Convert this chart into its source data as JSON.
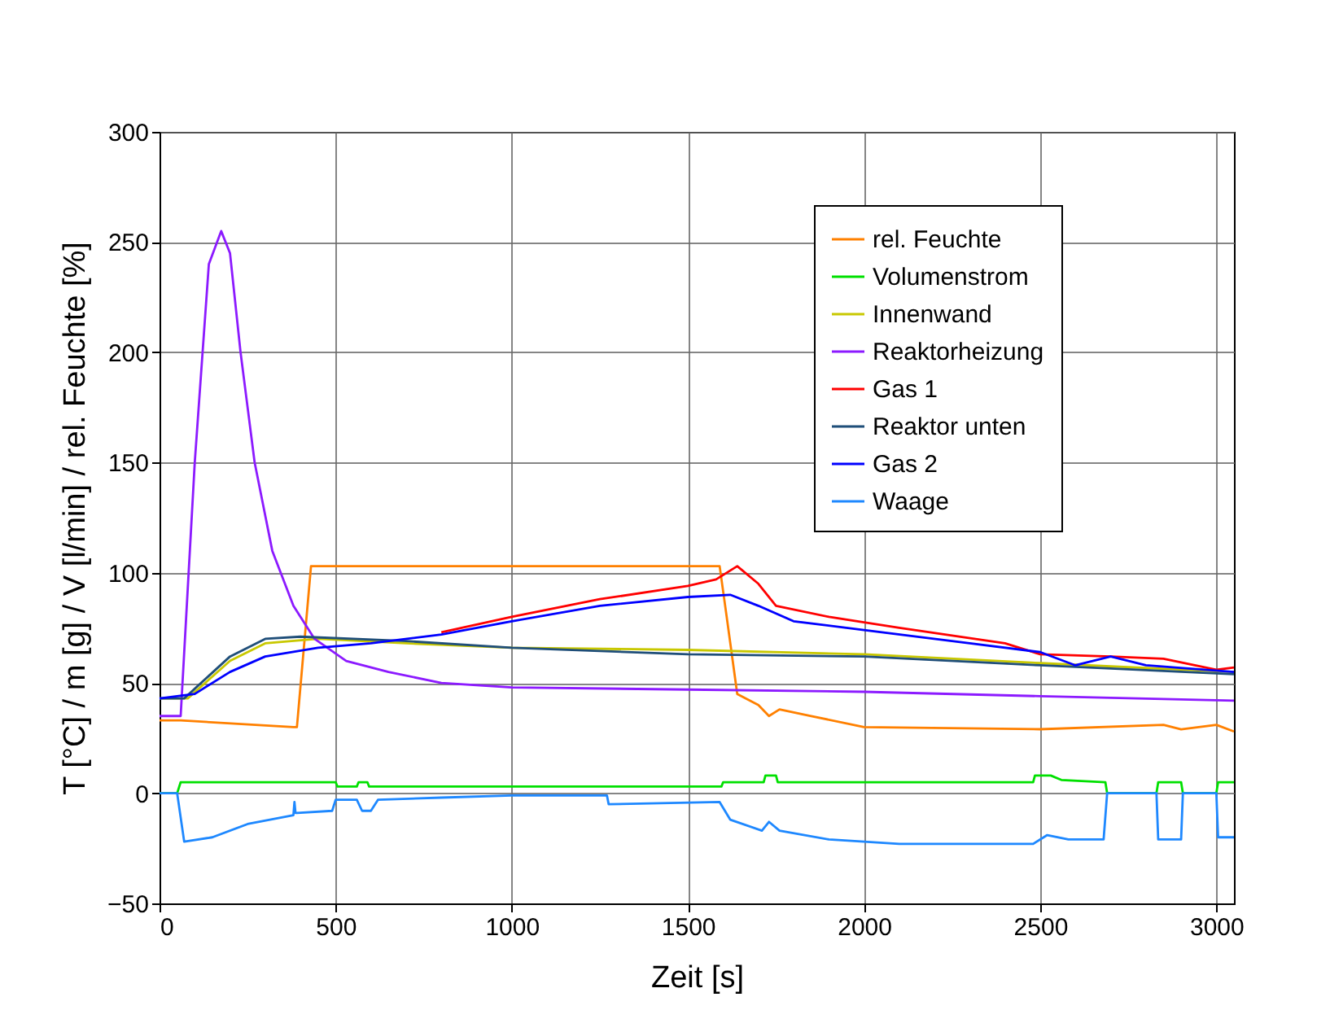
{
  "chart_data": {
    "type": "line",
    "xlabel": "Zeit [s]",
    "ylabel": "T [°C] / m [g] / V [l/min] / rel. Feuchte [%]",
    "xlim": [
      0,
      3050
    ],
    "xticks": [
      0,
      500,
      {
        "value": 1000,
        "label": "1000"
      },
      {
        "value": 1500,
        "label": "1500"
      },
      {
        "value": 2000,
        "label": "2000"
      },
      {
        "value": 2500,
        "label": "2500"
      },
      {
        "value": 3000,
        "label": "3000"
      }
    ],
    "ylim": [
      -50,
      300
    ],
    "yticks": [
      -50,
      0,
      50,
      100,
      150,
      200,
      250,
      300
    ],
    "grid": true,
    "legend": "top right",
    "series": [
      {
        "name": "rel. Feuchte",
        "color": "#ff8000",
        "x": [
          0,
          60,
          380,
          390,
          430,
          1590,
          1610,
          1640,
          1700,
          1730,
          1760,
          1850,
          2000,
          2500,
          2850,
          2900,
          3000,
          3050
        ],
        "values": [
          33,
          33,
          30,
          30,
          103,
          103,
          80,
          45,
          40,
          35,
          38,
          35,
          30,
          29,
          31,
          29,
          31,
          28
        ]
      },
      {
        "name": "Volumenstrom",
        "color": "#00e000",
        "x": [
          0,
          50,
          60,
          500,
          505,
          560,
          565,
          590,
          595,
          1595,
          1600,
          1715,
          1720,
          1750,
          1755,
          2480,
          2485,
          2530,
          2560,
          2685,
          2690,
          2830,
          2835,
          2900,
          2905,
          3000,
          3005,
          3050
        ],
        "values": [
          0,
          0,
          5,
          5,
          3,
          3,
          5,
          5,
          3,
          3,
          5,
          5,
          8,
          8,
          5,
          5,
          8,
          8,
          6,
          5,
          0,
          0,
          5,
          5,
          0,
          0,
          5,
          5
        ]
      },
      {
        "name": "Innenwand",
        "color": "#c8c800",
        "x": [
          0,
          80,
          200,
          300,
          450,
          700,
          1000,
          1500,
          2000,
          2500,
          3050
        ],
        "values": [
          43,
          43,
          60,
          68,
          70,
          68,
          66,
          65,
          63,
          59,
          55
        ]
      },
      {
        "name": "Reaktorheizung",
        "color": "#8c1aff",
        "x": [
          0,
          60,
          100,
          140,
          175,
          200,
          230,
          270,
          320,
          380,
          440,
          530,
          650,
          800,
          1000,
          1500,
          2000,
          2500,
          3050
        ],
        "values": [
          35,
          35,
          150,
          240,
          255,
          245,
          200,
          150,
          110,
          85,
          70,
          60,
          55,
          50,
          48,
          47,
          46,
          44,
          42
        ]
      },
      {
        "name": "Gas 1",
        "color": "#ff0000",
        "x": [
          800,
          1000,
          1250,
          1500,
          1580,
          1640,
          1700,
          1750,
          1900,
          2100,
          2400,
          2500,
          2700,
          2850,
          3000,
          3050
        ],
        "values": [
          73,
          80,
          88,
          94,
          97,
          103,
          95,
          85,
          80,
          75,
          68,
          63,
          62,
          61,
          56,
          57
        ]
      },
      {
        "name": "Reaktor unten",
        "color": "#1f4e79",
        "x": [
          0,
          70,
          200,
          300,
          400,
          700,
          1000,
          1500,
          2000,
          2500,
          3050
        ],
        "values": [
          43,
          43,
          62,
          70,
          71,
          69,
          66,
          63,
          62,
          58,
          54
        ]
      },
      {
        "name": "Gas 2",
        "color": "#0000ff",
        "x": [
          0,
          100,
          200,
          300,
          450,
          600,
          800,
          1000,
          1250,
          1500,
          1620,
          1700,
          1800,
          2000,
          2300,
          2500,
          2600,
          2700,
          2800,
          3050
        ],
        "values": [
          43,
          45,
          55,
          62,
          66,
          68,
          72,
          78,
          85,
          89,
          90,
          85,
          78,
          74,
          68,
          64,
          58,
          62,
          58,
          55
        ]
      },
      {
        "name": "Waage",
        "color": "#1e88ff",
        "x": [
          0,
          50,
          70,
          150,
          250,
          380,
          383,
          386,
          390,
          490,
          500,
          560,
          575,
          600,
          620,
          800,
          1000,
          1270,
          1275,
          1590,
          1620,
          1710,
          1730,
          1760,
          1900,
          2100,
          2480,
          2520,
          2580,
          2680,
          2690,
          2830,
          2835,
          2900,
          2905,
          3000,
          3005,
          3050
        ],
        "values": [
          0,
          0,
          -22,
          -20,
          -14,
          -10,
          -4,
          -9,
          -9,
          -8,
          -3,
          -3,
          -8,
          -8,
          -3,
          -2,
          -1,
          -1,
          -5,
          -4,
          -12,
          -17,
          -13,
          -17,
          -21,
          -23,
          -23,
          -19,
          -21,
          -21,
          0,
          0,
          -21,
          -21,
          0,
          0,
          -20,
          -20
        ]
      }
    ]
  }
}
